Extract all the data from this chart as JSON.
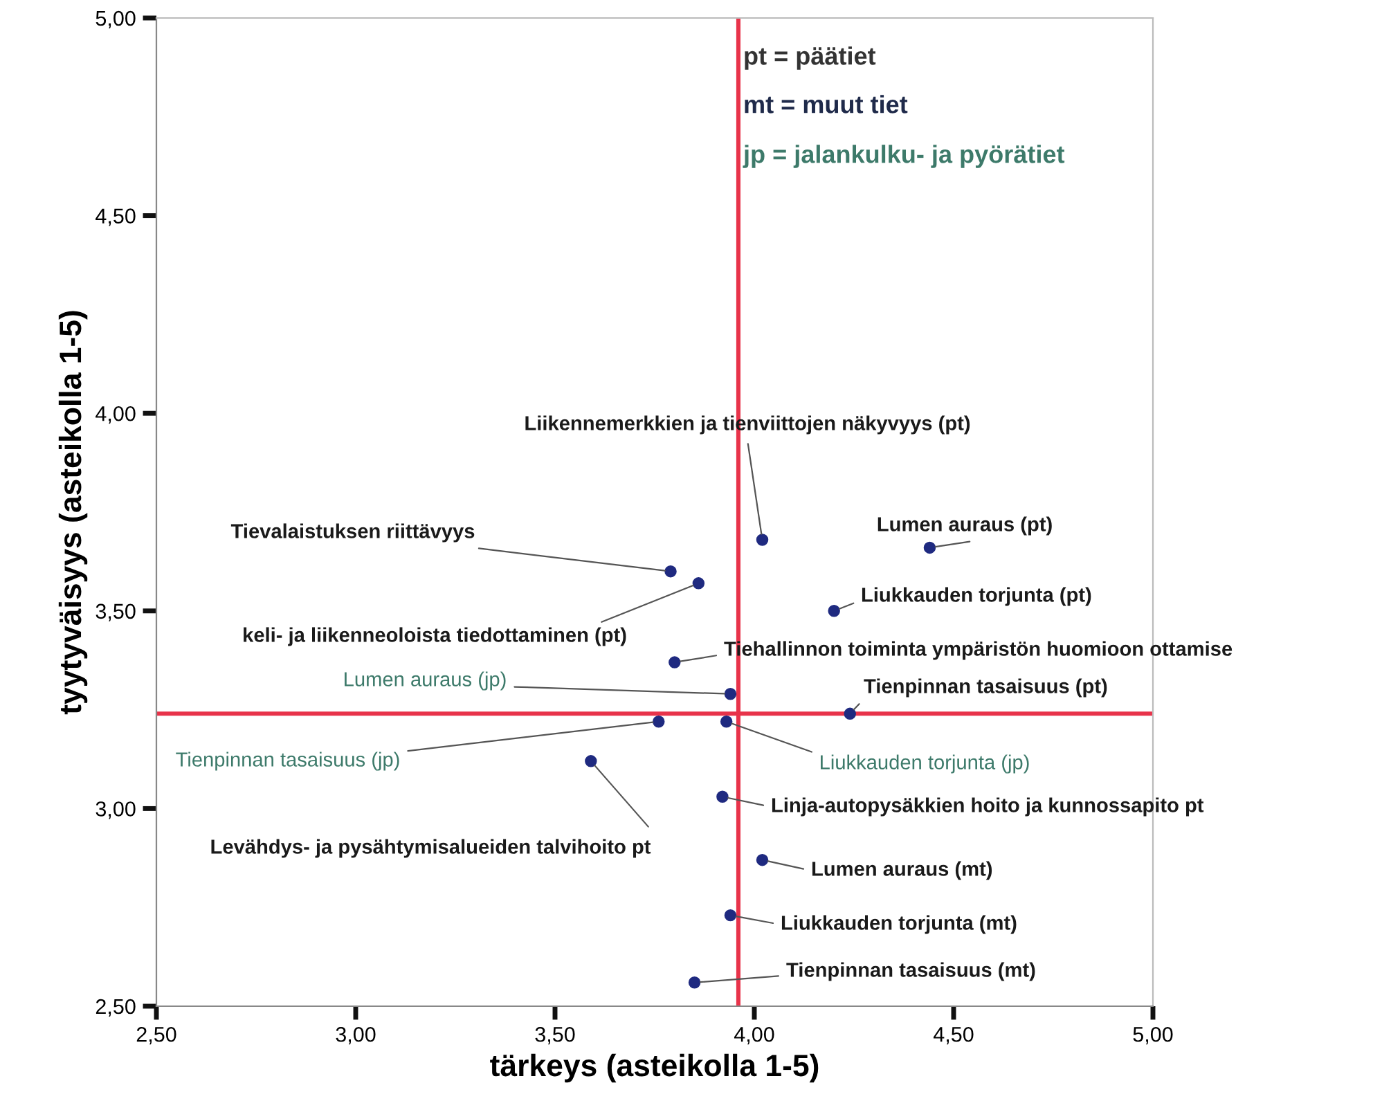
{
  "chart_data": {
    "type": "scatter",
    "xlabel": "tärkeys (asteikolla 1-5)",
    "ylabel": "tyytyväisyys (asteikolla 1-5)",
    "xlim": [
      2.5,
      5.0
    ],
    "ylim": [
      2.5,
      5.0
    ],
    "xticks": [
      {
        "value": 2.5,
        "label": "2,50"
      },
      {
        "value": 3.0,
        "label": "3,00"
      },
      {
        "value": 3.5,
        "label": "3,50"
      },
      {
        "value": 4.0,
        "label": "4,00"
      },
      {
        "value": 4.5,
        "label": "4,50"
      },
      {
        "value": 5.0,
        "label": "5,00"
      }
    ],
    "yticks": [
      {
        "value": 2.5,
        "label": "2,50"
      },
      {
        "value": 3.0,
        "label": "3,00"
      },
      {
        "value": 3.5,
        "label": "3,50"
      },
      {
        "value": 4.0,
        "label": "4,00"
      },
      {
        "value": 4.5,
        "label": "4,50"
      },
      {
        "value": 5.0,
        "label": "5,00"
      }
    ],
    "grid": false,
    "marker": "circle",
    "series": [
      {
        "color": "#1f2a80",
        "x": [
          4.02,
          4.44,
          3.79,
          3.86,
          4.2,
          3.8,
          3.94,
          4.24,
          3.76,
          3.93,
          3.59,
          3.92,
          4.02,
          3.94,
          3.85
        ],
        "values": [
          3.68,
          3.66,
          3.6,
          3.57,
          3.5,
          3.37,
          3.29,
          3.24,
          3.22,
          3.22,
          3.12,
          3.03,
          2.87,
          2.73,
          2.56
        ]
      }
    ],
    "ref_lines": [
      {
        "axis": "x",
        "value": 3.96,
        "color": "#e8334a"
      },
      {
        "axis": "y",
        "value": 3.24,
        "color": "#e8334a"
      }
    ],
    "annotations": [
      {
        "text": "Liikennemerkkien ja tienviittojen näkyvyys (pt)",
        "x": 4.02,
        "y": 3.68
      },
      {
        "text": "Lumen auraus (pt)",
        "x": 4.44,
        "y": 3.66
      },
      {
        "text": "Tievalaistuksen riittävyys",
        "x": 3.79,
        "y": 3.6
      },
      {
        "text": "keli- ja liikenneoloista tiedottaminen (pt)",
        "x": 3.86,
        "y": 3.57
      },
      {
        "text": "Liukkauden torjunta (pt)",
        "x": 4.2,
        "y": 3.5
      },
      {
        "text": "Tiehallinnon toiminta ympäristön huomioon ottamise",
        "x": 3.8,
        "y": 3.37
      },
      {
        "text": "Lumen auraus (jp)",
        "x": 3.94,
        "y": 3.29
      },
      {
        "text": "Tienpinnan tasaisuus (pt)",
        "x": 4.24,
        "y": 3.24
      },
      {
        "text": "Tienpinnan tasaisuus (jp)",
        "x": 3.76,
        "y": 3.22
      },
      {
        "text": "Liukkauden torjunta (jp)",
        "x": 3.93,
        "y": 3.22
      },
      {
        "text": "Levähdys- ja pysähtymisalueiden talvihoito pt",
        "x": 3.59,
        "y": 3.12
      },
      {
        "text": "Linja-autopysäkkien hoito ja kunnossapito pt",
        "x": 3.92,
        "y": 3.03
      },
      {
        "text": "Lumen auraus (mt)",
        "x": 4.02,
        "y": 2.87
      },
      {
        "text": "Liukkauden torjunta (mt)",
        "x": 3.94,
        "y": 2.73
      },
      {
        "text": "Tienpinnan tasaisuus (mt)",
        "x": 3.85,
        "y": 2.56
      },
      "pt = päätiet",
      "mt = muut tiet",
      "jp = jalankulku- ja pyörätiet"
    ]
  }
}
